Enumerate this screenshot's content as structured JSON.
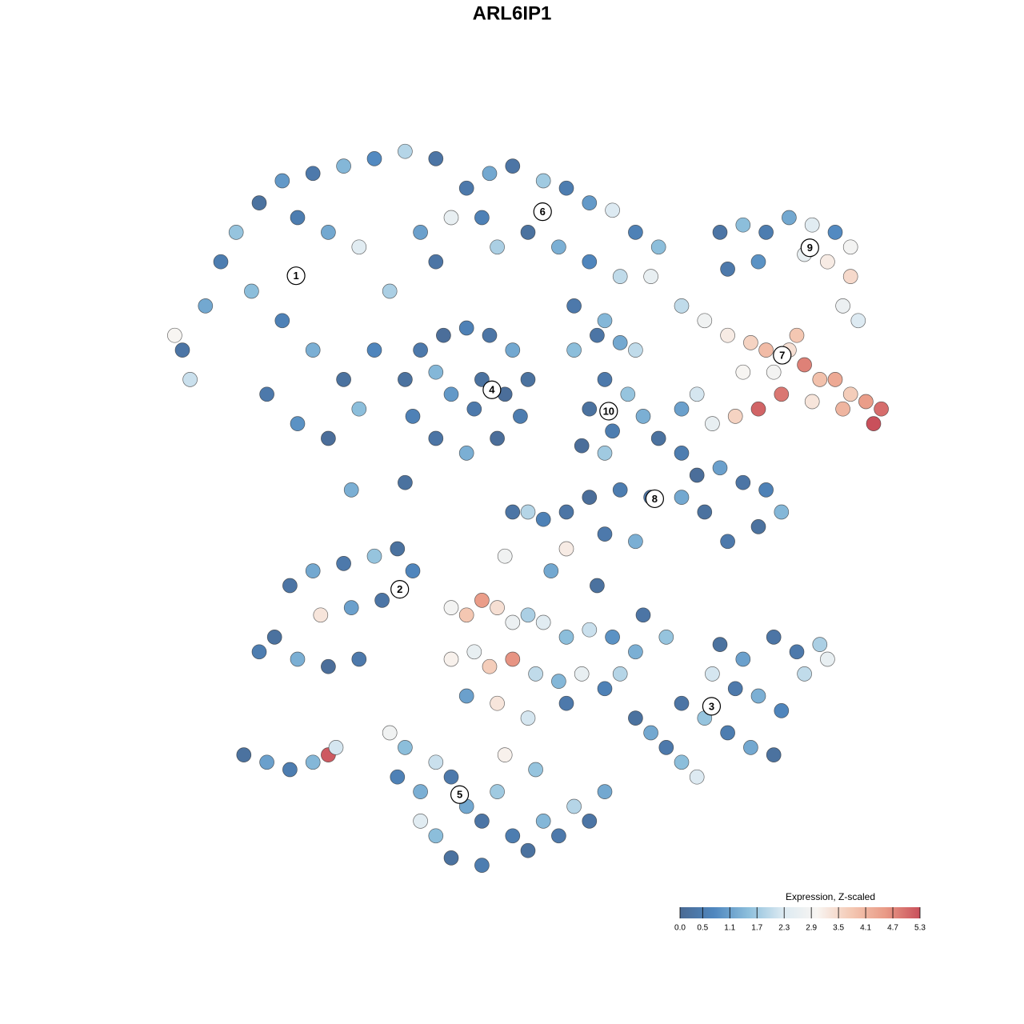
{
  "chart_data": {
    "type": "scatter",
    "title": "ARL6IP1",
    "xlim": [
      0,
      100
    ],
    "ylim": [
      0,
      100
    ],
    "x": [
      5,
      8,
      10,
      12,
      15,
      18,
      22,
      26,
      30,
      34,
      38,
      14,
      18,
      22,
      26,
      16,
      20,
      24,
      28,
      30,
      32,
      28,
      24,
      20,
      36,
      38,
      40,
      6,
      4,
      42,
      45,
      48,
      52,
      55,
      58,
      61,
      64,
      67,
      50,
      54,
      58,
      62,
      56,
      60,
      46,
      44,
      66,
      75,
      78,
      81,
      84,
      87,
      90,
      92,
      89,
      86,
      80,
      76,
      92,
      91,
      93,
      70,
      73,
      76,
      79,
      81,
      84,
      86,
      88,
      90,
      92,
      94,
      96,
      95,
      91,
      87,
      83,
      80,
      77,
      74,
      72,
      70,
      82,
      85,
      78,
      34,
      36,
      39,
      42,
      45,
      48,
      50,
      49,
      46,
      42,
      38,
      35,
      40,
      44,
      43,
      38,
      47,
      56,
      59,
      62,
      64,
      60,
      63,
      58,
      61,
      65,
      57,
      60,
      67,
      70,
      72,
      75,
      78,
      81,
      83,
      80,
      76,
      73,
      70,
      66,
      62,
      58,
      55,
      52,
      50,
      55,
      60,
      64,
      19,
      22,
      26,
      30,
      33,
      35,
      31,
      27,
      23,
      17,
      15,
      20,
      24,
      28,
      13,
      16,
      19,
      22,
      24,
      25,
      40,
      42,
      44,
      46,
      48,
      50,
      52,
      55,
      58,
      61,
      64,
      40,
      43,
      45,
      48,
      51,
      54,
      57,
      60,
      62,
      46,
      50,
      42,
      55,
      65,
      68,
      59,
      53,
      47,
      64,
      66,
      68,
      70,
      72,
      70,
      73,
      76,
      79,
      82,
      74,
      77,
      80,
      83,
      86,
      85,
      88,
      89,
      82,
      78,
      75,
      32,
      34,
      33,
      36,
      38,
      40,
      42,
      44,
      46,
      48,
      50,
      52,
      54,
      56,
      58,
      60,
      38,
      40,
      44,
      36,
      47,
      51,
      27,
      34,
      48
    ],
    "y": [
      72,
      78,
      84,
      88,
      92,
      95,
      96,
      97,
      98,
      99,
      98,
      80,
      76,
      72,
      68,
      66,
      62,
      60,
      64,
      72,
      80,
      86,
      88,
      90,
      88,
      84,
      90,
      68,
      74,
      94,
      96,
      97,
      95,
      94,
      92,
      91,
      88,
      86,
      88,
      86,
      84,
      82,
      78,
      76,
      86,
      90,
      82,
      88,
      89,
      88,
      90,
      89,
      88,
      86,
      84,
      85,
      84,
      83,
      82,
      78,
      76,
      78,
      76,
      74,
      73,
      72,
      72,
      70,
      68,
      68,
      66,
      65,
      64,
      62,
      64,
      65,
      66,
      64,
      63,
      62,
      66,
      64,
      69,
      74,
      69,
      68,
      72,
      74,
      75,
      74,
      72,
      68,
      63,
      60,
      58,
      60,
      63,
      66,
      68,
      64,
      69,
      66,
      72,
      74,
      73,
      72,
      68,
      66,
      64,
      61,
      63,
      59,
      58,
      60,
      58,
      55,
      56,
      54,
      53,
      50,
      48,
      46,
      50,
      52,
      52,
      53,
      52,
      50,
      49,
      50,
      45,
      47,
      46,
      40,
      42,
      43,
      44,
      45,
      42,
      38,
      37,
      36,
      33,
      31,
      30,
      29,
      30,
      17,
      16,
      15,
      16,
      17,
      18,
      37,
      36,
      38,
      37,
      35,
      36,
      35,
      33,
      34,
      33,
      31,
      30,
      31,
      29,
      30,
      28,
      27,
      28,
      26,
      28,
      24,
      22,
      25,
      24,
      36,
      33,
      40,
      42,
      44,
      22,
      20,
      18,
      16,
      14,
      24,
      22,
      20,
      18,
      17,
      28,
      26,
      25,
      23,
      28,
      31,
      32,
      30,
      33,
      30,
      32,
      20,
      18,
      14,
      12,
      16,
      14,
      10,
      8,
      12,
      6,
      4,
      8,
      6,
      10,
      8,
      12,
      6,
      3,
      2,
      8,
      17,
      15,
      53,
      54,
      50
    ],
    "values": [
      0.3,
      1.2,
      0.5,
      1.6,
      0.2,
      1.0,
      0.4,
      1.4,
      0.8,
      1.9,
      0.3,
      1.5,
      0.6,
      1.3,
      0.2,
      0.4,
      0.9,
      0.1,
      1.5,
      0.7,
      1.8,
      2.4,
      1.2,
      0.5,
      1.1,
      0.3,
      2.6,
      2.1,
      3.0,
      0.4,
      1.2,
      0.3,
      1.7,
      0.5,
      1.0,
      2.3,
      0.6,
      1.5,
      0.2,
      1.3,
      0.7,
      2.0,
      0.4,
      1.4,
      1.8,
      0.6,
      2.6,
      0.3,
      1.5,
      0.5,
      1.2,
      2.4,
      0.8,
      2.9,
      3.2,
      2.6,
      0.9,
      0.4,
      3.5,
      2.7,
      2.3,
      2.0,
      2.8,
      3.2,
      3.6,
      4.0,
      3.4,
      4.8,
      3.9,
      4.3,
      3.7,
      4.5,
      5.0,
      5.3,
      4.1,
      3.3,
      4.9,
      5.1,
      3.6,
      2.6,
      2.2,
      1.1,
      2.9,
      3.8,
      3.0,
      0.2,
      0.4,
      0.1,
      0.6,
      0.3,
      1.2,
      0.2,
      0.5,
      0.1,
      1.3,
      0.3,
      0.6,
      1.0,
      0.2,
      0.4,
      1.4,
      0.1,
      1.5,
      0.3,
      1.2,
      2.0,
      0.4,
      1.6,
      0.2,
      0.5,
      1.3,
      0.1,
      1.7,
      0.2,
      0.5,
      0.1,
      1.1,
      0.3,
      0.6,
      1.4,
      0.2,
      0.4,
      0.2,
      1.2,
      0.3,
      0.5,
      0.1,
      0.3,
      0.6,
      1.9,
      3.2,
      0.4,
      1.3,
      0.3,
      1.2,
      0.4,
      1.6,
      0.2,
      0.7,
      0.3,
      1.1,
      3.3,
      0.2,
      0.5,
      1.3,
      0.1,
      0.4,
      0.2,
      1.1,
      0.5,
      1.4,
      5.2,
      2.2,
      2.9,
      3.8,
      4.5,
      3.4,
      2.7,
      1.8,
      2.4,
      1.5,
      2.1,
      0.9,
      1.3,
      3.1,
      2.6,
      3.7,
      4.6,
      2.0,
      1.4,
      2.6,
      0.6,
      1.9,
      3.3,
      2.2,
      1.1,
      0.4,
      0.3,
      1.6,
      0.2,
      1.2,
      2.8,
      0.2,
      1.2,
      0.4,
      1.5,
      2.3,
      0.3,
      1.6,
      0.5,
      1.2,
      0.2,
      2.2,
      0.4,
      1.3,
      0.7,
      2.0,
      0.4,
      1.8,
      2.6,
      0.3,
      1.1,
      0.2,
      2.8,
      1.5,
      0.6,
      1.3,
      2.1,
      0.4,
      1.2,
      0.3,
      1.7,
      0.5,
      0.2,
      1.4,
      0.4,
      1.9,
      0.3,
      1.2,
      1.5,
      0.2,
      0.5,
      2.4,
      3.1,
      1.6,
      1.3,
      0.2,
      0.3
    ],
    "cluster_labels": [
      {
        "label": "1",
        "x": 19.8,
        "y": 82.1
      },
      {
        "label": "2",
        "x": 33.3,
        "y": 39.5
      },
      {
        "label": "3",
        "x": 73.9,
        "y": 23.6
      },
      {
        "label": "4",
        "x": 45.3,
        "y": 66.6
      },
      {
        "label": "5",
        "x": 41.1,
        "y": 11.6
      },
      {
        "label": "6",
        "x": 51.9,
        "y": 90.8
      },
      {
        "label": "7",
        "x": 83.1,
        "y": 71.3
      },
      {
        "label": "8",
        "x": 66.5,
        "y": 51.8
      },
      {
        "label": "9",
        "x": 86.7,
        "y": 85.9
      },
      {
        "label": "10",
        "x": 60.5,
        "y": 63.7
      }
    ],
    "colorbar_title": "Expression, Z-scaled",
    "clim": [
      0,
      5.3
    ],
    "colorscale": [
      "#4a6a94",
      "#4f87bf",
      "#8dbfdc",
      "#dceaf2",
      "#f8f5f2",
      "#f4c8b3",
      "#e99a86",
      "#c9505b"
    ],
    "cticks": [
      {
        "value": 0,
        "label": "0.0"
      },
      0.5,
      1.1,
      1.7,
      2.3,
      2.9,
      3.5,
      4.1,
      4.7,
      5.3
    ]
  }
}
